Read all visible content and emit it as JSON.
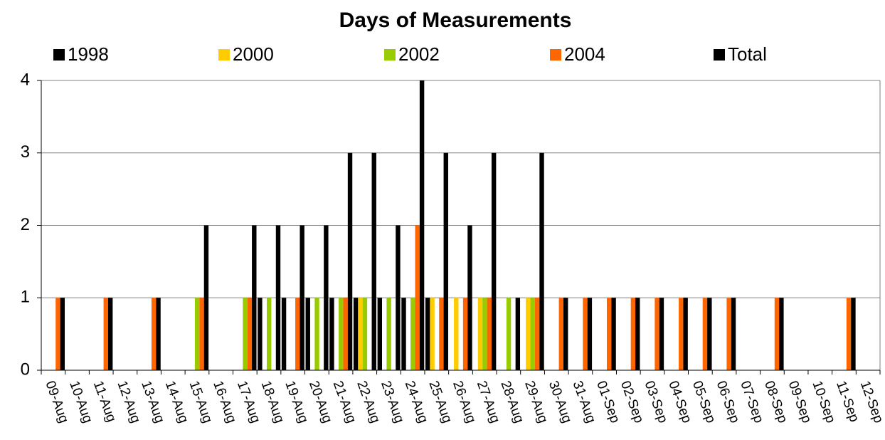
{
  "chart_data": {
    "type": "bar",
    "title": "Days of Measurements",
    "categories": [
      "09-Aug",
      "10-Aug",
      "11-Aug",
      "12-Aug",
      "13-Aug",
      "14-Aug",
      "15-Aug",
      "16-Aug",
      "17-Aug",
      "18-Aug",
      "19-Aug",
      "20-Aug",
      "21-Aug",
      "22-Aug",
      "23-Aug",
      "24-Aug",
      "25-Aug",
      "26-Aug",
      "27-Aug",
      "28-Aug",
      "29-Aug",
      "30-Aug",
      "31-Aug",
      "01-Sep",
      "02-Sep",
      "03-Sep",
      "04-Sep",
      "05-Sep",
      "06-Sep",
      "07-Sep",
      "08-Sep",
      "09-Sep",
      "10-Sep",
      "11-Sep",
      "12-Sep"
    ],
    "series": [
      {
        "name": "1998",
        "color": "#000000",
        "values": [
          0,
          0,
          0,
          0,
          0,
          0,
          0,
          0,
          0,
          1,
          1,
          1,
          1,
          1,
          1,
          1,
          1,
          0,
          0,
          0,
          0,
          0,
          0,
          0,
          0,
          0,
          0,
          0,
          0,
          0,
          0,
          0,
          0,
          0,
          0
        ]
      },
      {
        "name": "2000",
        "color": "#ffcc00",
        "values": [
          0,
          0,
          0,
          0,
          0,
          0,
          0,
          0,
          0,
          0,
          0,
          0,
          0,
          1,
          0,
          0,
          1,
          1,
          1,
          0,
          1,
          0,
          0,
          0,
          0,
          0,
          0,
          0,
          0,
          0,
          0,
          0,
          0,
          0,
          0
        ]
      },
      {
        "name": "2002",
        "color": "#99cc00",
        "values": [
          0,
          0,
          0,
          0,
          0,
          0,
          1,
          0,
          1,
          1,
          0,
          1,
          1,
          1,
          1,
          1,
          0,
          0,
          1,
          1,
          1,
          0,
          0,
          0,
          0,
          0,
          0,
          0,
          0,
          0,
          0,
          0,
          0,
          0,
          0
        ]
      },
      {
        "name": "2004",
        "color": "#ff6600",
        "values": [
          1,
          0,
          1,
          0,
          1,
          0,
          1,
          0,
          1,
          0,
          1,
          0,
          1,
          0,
          0,
          2,
          1,
          1,
          1,
          0,
          1,
          1,
          1,
          1,
          1,
          1,
          1,
          1,
          1,
          0,
          1,
          0,
          0,
          1,
          0
        ]
      },
      {
        "name": "Total",
        "color": "#000000",
        "values": [
          1,
          0,
          1,
          0,
          1,
          0,
          2,
          0,
          2,
          2,
          2,
          2,
          3,
          3,
          2,
          4,
          3,
          2,
          3,
          1,
          3,
          1,
          1,
          1,
          1,
          1,
          1,
          1,
          1,
          0,
          1,
          0,
          0,
          1,
          0
        ]
      }
    ],
    "ylim": [
      0,
      4
    ],
    "yticks": [
      0,
      1,
      2,
      3,
      4
    ],
    "grid": true,
    "legend": "top"
  }
}
